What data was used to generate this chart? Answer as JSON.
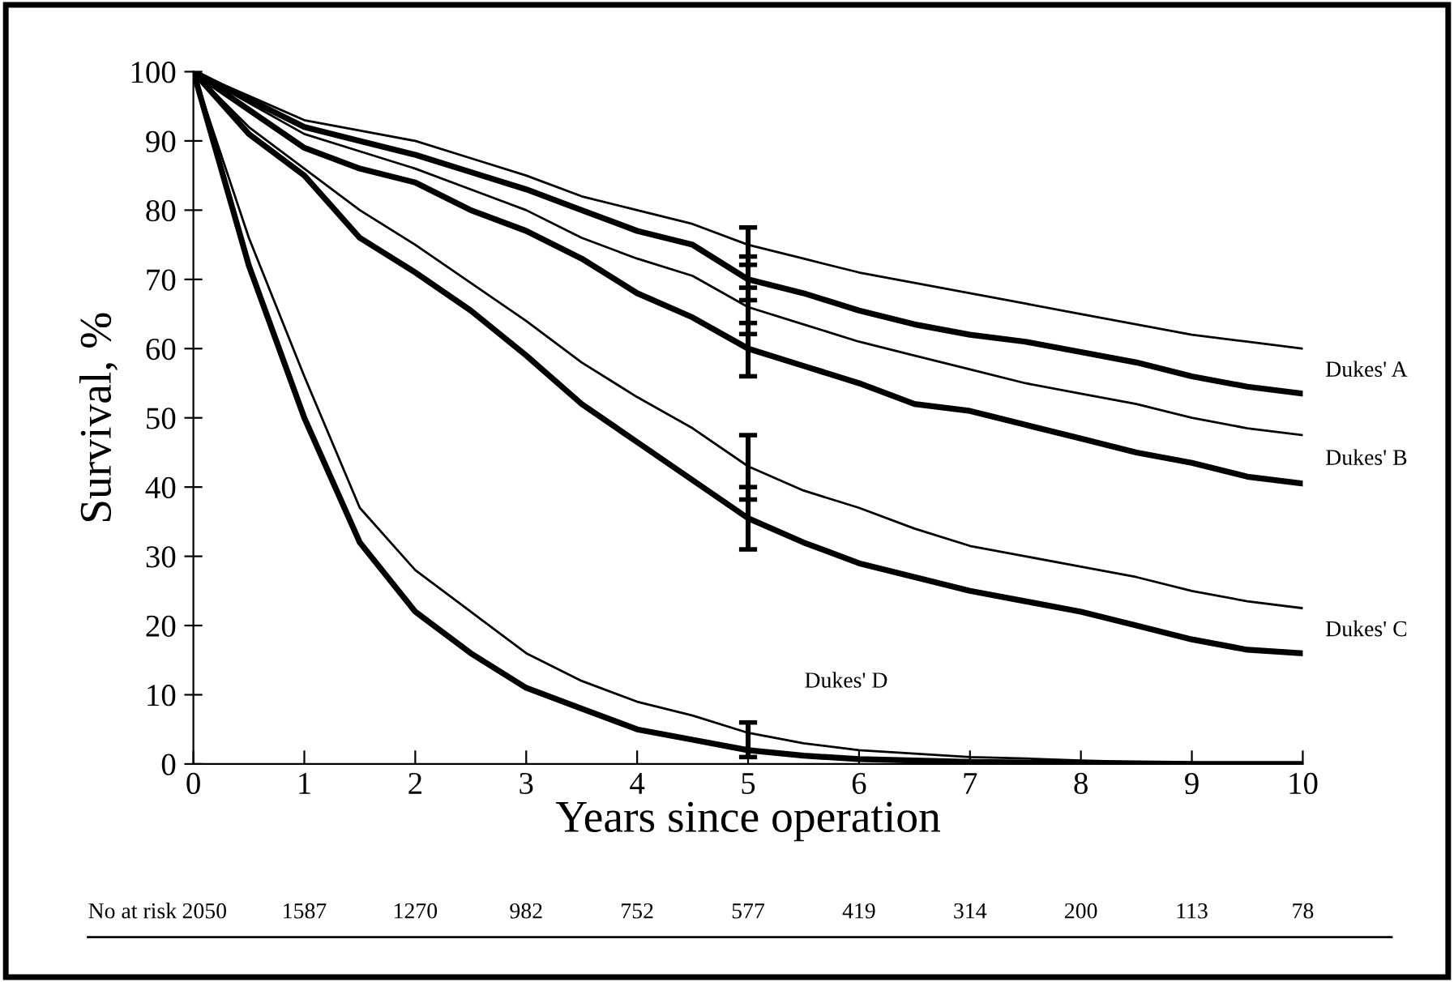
{
  "chart_data": {
    "type": "line",
    "xlabel": "Years since operation",
    "ylabel": "Survival, %",
    "xlim": [
      0,
      10
    ],
    "ylim": [
      0,
      100
    ],
    "xticks": [
      0,
      1,
      2,
      3,
      4,
      5,
      6,
      7,
      8,
      9,
      10
    ],
    "yticks": [
      0,
      10,
      20,
      30,
      40,
      50,
      60,
      70,
      80,
      90,
      100
    ],
    "x": [
      0,
      0.5,
      1,
      1.5,
      2,
      2.5,
      3,
      3.5,
      4,
      4.5,
      5,
      5.5,
      6,
      6.5,
      7,
      7.5,
      8,
      8.5,
      9,
      9.5,
      10
    ],
    "grid": false,
    "legend": false,
    "marker": "none",
    "line_style": "solid",
    "series": [
      {
        "color": "#000000",
        "values": [
          100,
          96.5,
          93,
          91.5,
          90,
          87.5,
          85,
          82,
          80,
          78,
          75,
          73,
          71,
          69.5,
          68,
          66.5,
          65,
          63.5,
          62,
          61,
          60
        ],
        "errors": [
          null,
          null,
          null,
          null,
          null,
          null,
          null,
          null,
          null,
          null,
          [
            72.1,
            77.5
          ],
          null,
          null,
          null,
          null,
          null,
          null,
          null,
          null,
          null,
          null
        ]
      },
      {
        "color": "#000000",
        "values": [
          100,
          96,
          92,
          90,
          88,
          85.5,
          83,
          80,
          77,
          75,
          70,
          68,
          65.5,
          63.5,
          62,
          61,
          59.5,
          58,
          56,
          54.5,
          53.5
        ],
        "errors": [
          null,
          null,
          null,
          null,
          null,
          null,
          null,
          null,
          null,
          null,
          [
            67,
            73.3
          ],
          null,
          null,
          null,
          null,
          null,
          null,
          null,
          null,
          null,
          null
        ]
      },
      {
        "color": "#000000",
        "values": [
          100,
          95.5,
          91,
          88.5,
          86,
          83,
          80,
          76,
          73,
          70.5,
          66,
          63.5,
          61,
          59,
          57,
          55,
          53.5,
          52,
          50,
          48.5,
          47.5
        ],
        "errors": [
          null,
          null,
          null,
          null,
          null,
          null,
          null,
          null,
          null,
          null,
          [
            62.1,
            68.8
          ],
          null,
          null,
          null,
          null,
          null,
          null,
          null,
          null,
          null,
          null
        ]
      },
      {
        "color": "#000000",
        "values": [
          100,
          94.5,
          89,
          86,
          84,
          80,
          77,
          73,
          68,
          64.5,
          60,
          57.5,
          55,
          52,
          51,
          49,
          47,
          45,
          43.5,
          41.5,
          40.5
        ],
        "errors": [
          null,
          null,
          null,
          null,
          null,
          null,
          null,
          null,
          null,
          null,
          [
            56,
            63.7
          ],
          null,
          null,
          null,
          null,
          null,
          null,
          null,
          null,
          null,
          null
        ]
      },
      {
        "color": "#000000",
        "values": [
          100,
          92,
          86,
          80,
          75,
          69.5,
          64,
          58,
          53,
          48.5,
          43,
          39.5,
          37,
          34,
          31.5,
          30,
          28.5,
          27,
          25,
          23.5,
          22.5
        ],
        "errors": [
          null,
          null,
          null,
          null,
          null,
          null,
          null,
          null,
          null,
          null,
          [
            38.2,
            47.5
          ],
          null,
          null,
          null,
          null,
          null,
          null,
          null,
          null,
          null,
          null
        ]
      },
      {
        "color": "#000000",
        "values": [
          100,
          91,
          85,
          76,
          71,
          65.5,
          59,
          52,
          46.5,
          41,
          35.5,
          32,
          29,
          27,
          25,
          23.5,
          22,
          20,
          18,
          16.5,
          16
        ],
        "errors": [
          null,
          null,
          null,
          null,
          null,
          null,
          null,
          null,
          null,
          null,
          [
            31,
            40
          ],
          null,
          null,
          null,
          null,
          null,
          null,
          null,
          null,
          null,
          null
        ]
      },
      {
        "color": "#000000",
        "values": [
          100,
          76,
          56,
          37,
          28,
          22,
          16,
          12,
          9,
          7,
          4.5,
          3,
          2,
          1.5,
          1,
          0.8,
          0.5,
          0.3,
          0.2,
          0.1,
          0
        ]
      },
      {
        "color": "#000000",
        "values": [
          100,
          72,
          50,
          32,
          22,
          16,
          11,
          8,
          5,
          3.5,
          2,
          1.2,
          0.7,
          0.5,
          0.3,
          0.2,
          0.1,
          0.1,
          0,
          0,
          0
        ],
        "errors": [
          null,
          null,
          null,
          null,
          null,
          null,
          null,
          null,
          null,
          null,
          [
            1,
            6
          ],
          null,
          null,
          null,
          null,
          null,
          null,
          null,
          null,
          null,
          null
        ]
      }
    ],
    "annotations": [
      "Dukes' A",
      "Dukes' B",
      "Dukes' C",
      "Dukes' D",
      "No at risk",
      "2050",
      "1587",
      "1270",
      "982",
      "752",
      "577",
      "419",
      "314",
      "200",
      "113",
      "78"
    ]
  }
}
